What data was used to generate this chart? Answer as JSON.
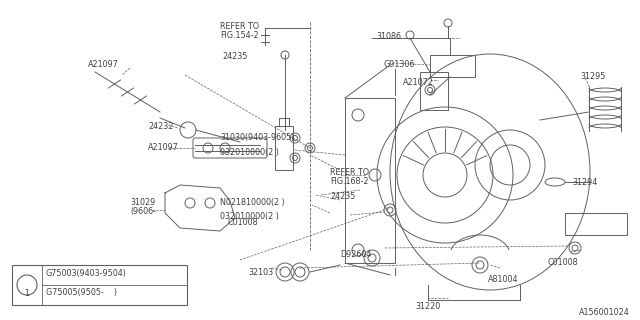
{
  "bg_color": "#ffffff",
  "line_color": "#606060",
  "text_color": "#404040",
  "diagram_id": "A156001024",
  "legend_rows": [
    "G75003(9403-9504)",
    "G75005(9505-    )"
  ],
  "figsize": [
    6.4,
    3.2
  ],
  "dpi": 100
}
